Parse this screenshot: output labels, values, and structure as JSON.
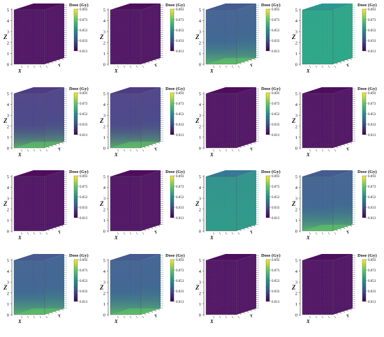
{
  "figure": {
    "rows": 4,
    "cols": 4
  },
  "colormap": [
    "#440154",
    "#3b528b",
    "#21918c",
    "#5ec962",
    "#fde725"
  ],
  "colorbar": {
    "title": "Dose (Gy)",
    "ticks": [
      "0.093",
      "0.073",
      "0.053",
      "0.033",
      "0.013"
    ]
  },
  "axis_labels": {
    "z": "Z",
    "x": "X",
    "y": "Y"
  },
  "z_ticks": [
    "0",
    "1",
    "2",
    "3",
    "4",
    "5"
  ],
  "chart_data": [
    {
      "type": "heatmap",
      "panel": 1,
      "z_ticks": [
        0,
        1,
        2,
        3,
        4,
        5
      ],
      "colorbar_range": [
        0.013,
        0.093
      ],
      "colorbar_label": "Dose (Gy)",
      "dominant_level": "low",
      "hotspot": "none"
    },
    {
      "type": "heatmap",
      "panel": 2,
      "z_ticks": [
        0,
        1,
        2,
        3,
        4,
        5
      ],
      "colorbar_range": [
        0.013,
        0.093
      ],
      "colorbar_label": "Dose (Gy)",
      "dominant_level": "low",
      "hotspot": "none"
    },
    {
      "type": "heatmap",
      "panel": 3,
      "z_ticks": [
        0,
        1,
        2,
        3,
        4,
        5
      ],
      "colorbar_range": [
        0.013,
        0.093
      ],
      "colorbar_label": "Dose (Gy)",
      "dominant_level": "medium",
      "hotspot": "bottom"
    },
    {
      "type": "heatmap",
      "panel": 4,
      "z_ticks": [
        0,
        1,
        2,
        3,
        4,
        5
      ],
      "colorbar_range": [
        0.013,
        0.093
      ],
      "colorbar_label": "Dose (Gy)",
      "dominant_level": "high",
      "hotspot": "uniform"
    },
    {
      "type": "heatmap",
      "panel": 5,
      "z_ticks": [
        0,
        1,
        2,
        3,
        4,
        5
      ],
      "colorbar_range": [
        0.013,
        0.093
      ],
      "colorbar_label": "Dose (Gy)",
      "dominant_level": "low-medium",
      "hotspot": "bottom"
    },
    {
      "type": "heatmap",
      "panel": 6,
      "z_ticks": [
        0,
        1,
        2,
        3,
        4,
        5
      ],
      "colorbar_range": [
        0.013,
        0.093
      ],
      "colorbar_label": "Dose (Gy)",
      "dominant_level": "low-medium",
      "hotspot": "bottom"
    },
    {
      "type": "heatmap",
      "panel": 7,
      "z_ticks": [
        0,
        1,
        2,
        3,
        4,
        5
      ],
      "colorbar_range": [
        0.013,
        0.093
      ],
      "colorbar_label": "Dose (Gy)",
      "dominant_level": "low",
      "hotspot": "none"
    },
    {
      "type": "heatmap",
      "panel": 8,
      "z_ticks": [
        0,
        1,
        2,
        3,
        4,
        5
      ],
      "colorbar_range": [
        0.013,
        0.093
      ],
      "colorbar_label": "Dose (Gy)",
      "dominant_level": "low",
      "hotspot": "none"
    },
    {
      "type": "heatmap",
      "panel": 9,
      "z_ticks": [
        0,
        1,
        2,
        3,
        4,
        5
      ],
      "colorbar_range": [
        0.013,
        0.093
      ],
      "colorbar_label": "Dose (Gy)",
      "dominant_level": "low",
      "hotspot": "none"
    },
    {
      "type": "heatmap",
      "panel": 10,
      "z_ticks": [
        0,
        1,
        2,
        3,
        4,
        5
      ],
      "colorbar_range": [
        0.013,
        0.093
      ],
      "colorbar_label": "Dose (Gy)",
      "dominant_level": "low",
      "hotspot": "none"
    },
    {
      "type": "heatmap",
      "panel": 11,
      "z_ticks": [
        0,
        1,
        2,
        3,
        4,
        5
      ],
      "colorbar_range": [
        0.013,
        0.093
      ],
      "colorbar_label": "Dose (Gy)",
      "dominant_level": "medium-high",
      "hotspot": "uniform"
    },
    {
      "type": "heatmap",
      "panel": 12,
      "z_ticks": [
        0,
        1,
        2,
        3,
        4,
        5
      ],
      "colorbar_range": [
        0.013,
        0.093
      ],
      "colorbar_label": "Dose (Gy)",
      "dominant_level": "medium",
      "hotspot": "bottom"
    },
    {
      "type": "heatmap",
      "panel": 13,
      "z_ticks": [
        0,
        1,
        2,
        3,
        4,
        5
      ],
      "colorbar_range": [
        0.013,
        0.093
      ],
      "colorbar_label": "Dose (Gy)",
      "dominant_level": "medium",
      "hotspot": "bottom"
    },
    {
      "type": "heatmap",
      "panel": 14,
      "z_ticks": [
        0,
        1,
        2,
        3,
        4,
        5
      ],
      "colorbar_range": [
        0.013,
        0.093
      ],
      "colorbar_label": "Dose (Gy)",
      "dominant_level": "medium",
      "hotspot": "bottom"
    },
    {
      "type": "heatmap",
      "panel": 15,
      "z_ticks": [
        0,
        1,
        2,
        3,
        4,
        5
      ],
      "colorbar_range": [
        0.013,
        0.093
      ],
      "colorbar_label": "Dose (Gy)",
      "dominant_level": "low",
      "hotspot": "none"
    },
    {
      "type": "heatmap",
      "panel": 16,
      "z_ticks": [
        0,
        1,
        2,
        3,
        4,
        5
      ],
      "colorbar_range": [
        0.013,
        0.093
      ],
      "colorbar_label": "Dose (Gy)",
      "dominant_level": "low",
      "hotspot": "none"
    }
  ]
}
